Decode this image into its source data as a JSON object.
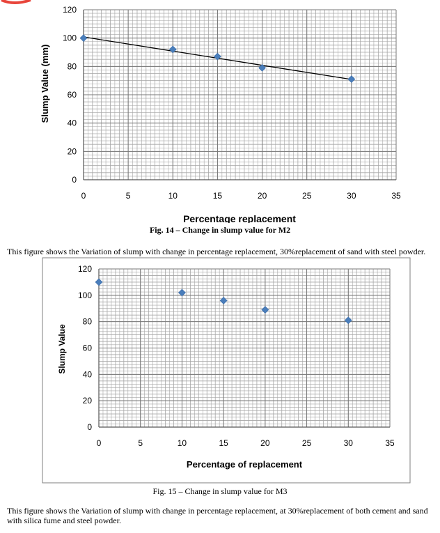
{
  "page": {
    "fig14_caption": "Fig. 14 – Change in slump value for M2",
    "para1": "This figure shows the Variation of slump with change in percentage replacement, 30%replacement of sand with steel powder.",
    "fig15_caption": "Fig. 15 – Change in slump value for M3",
    "para2": "This figure shows the Variation of slump with change in percentage replacement, at 30%replacement of both cement and sand with silica fume and steel powder."
  },
  "colors": {
    "marker": "#4a7ebb",
    "trendline": "#000000",
    "grid": "#a6a6a6",
    "logo_accent": "#e8443a"
  },
  "chart_data": [
    {
      "type": "scatter",
      "title": "",
      "xlabel": "Percentage replacement",
      "ylabel": "Slump Value (mm)",
      "xlim": [
        0,
        35
      ],
      "ylim": [
        0,
        120
      ],
      "xticks": [
        0,
        5,
        10,
        15,
        20,
        25,
        30,
        35
      ],
      "yticks": [
        0,
        20,
        40,
        60,
        80,
        100,
        120
      ],
      "grid": true,
      "trendline": true,
      "series": [
        {
          "x": [
            0,
            10,
            15,
            20,
            30
          ],
          "y": [
            100,
            92,
            87,
            79,
            71
          ]
        }
      ]
    },
    {
      "type": "scatter",
      "title": "",
      "xlabel": "Percentage of replacement",
      "ylabel": "Slump Value",
      "xlim": [
        0,
        35
      ],
      "ylim": [
        0,
        120
      ],
      "xticks": [
        0,
        5,
        10,
        15,
        20,
        25,
        30,
        35
      ],
      "yticks": [
        0,
        20,
        40,
        60,
        80,
        100,
        120
      ],
      "grid": true,
      "trendline": false,
      "series": [
        {
          "x": [
            0,
            10,
            15,
            20,
            30
          ],
          "y": [
            110,
            102,
            96,
            89,
            81
          ]
        }
      ]
    }
  ]
}
